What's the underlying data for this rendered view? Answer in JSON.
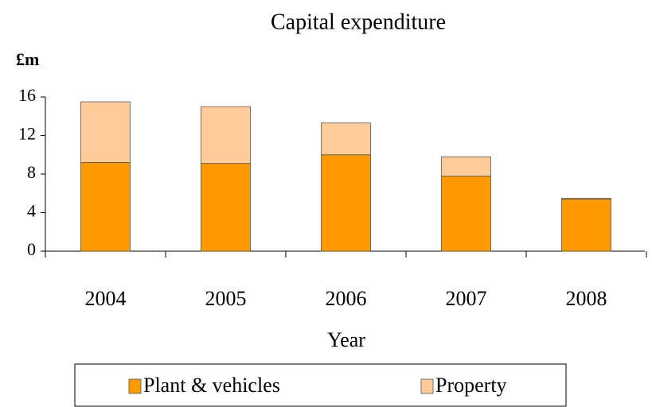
{
  "chart_data": {
    "type": "stacked_bar",
    "title": "Capital expenditure",
    "y_axis_label": "£m",
    "x_axis_label": "Year",
    "categories": [
      "2004",
      "2005",
      "2006",
      "2007",
      "2008"
    ],
    "series": [
      {
        "name": "Plant & vehicles",
        "color": "#ff9900",
        "values": [
          9.2,
          9.1,
          10.0,
          7.8,
          5.4
        ]
      },
      {
        "name": "Property",
        "color": "#ffcc99",
        "values": [
          6.3,
          5.9,
          3.3,
          2.0,
          0.1
        ]
      }
    ],
    "ylim": [
      0,
      16
    ],
    "yticks": [
      0,
      4,
      8,
      12,
      16
    ],
    "grid": false
  }
}
